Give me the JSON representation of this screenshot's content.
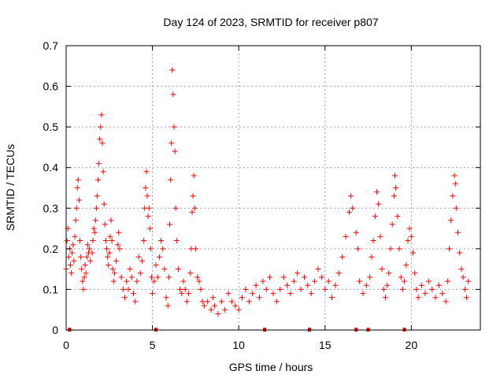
{
  "chart_data": {
    "type": "scatter",
    "title": "Day 124 of 2023, SRMTID for receiver p807",
    "xlabel": "GPS time / hours",
    "ylabel": "SRMTID / TECUs",
    "xlim": [
      0,
      24
    ],
    "ylim": [
      0,
      0.7
    ],
    "x_ticks": [
      0,
      5,
      10,
      15,
      20
    ],
    "y_ticks": [
      0,
      0.1,
      0.2,
      0.3,
      0.4,
      0.5,
      0.6,
      0.7
    ],
    "x_tick_labels": [
      "0",
      "5",
      "10",
      "15",
      "20"
    ],
    "y_tick_labels": [
      "0",
      "0.1",
      "0.2",
      "0.3",
      "0.4",
      "0.5",
      "0.6",
      "0.7"
    ],
    "grid": true,
    "marker": "+",
    "color": "#ff0000",
    "series": [
      {
        "name": "SRMTID",
        "points": [
          [
            0.0,
            0.15
          ],
          [
            0.05,
            0.22
          ],
          [
            0.1,
            0.25
          ],
          [
            0.15,
            0.18
          ],
          [
            0.2,
            0.2
          ],
          [
            0.25,
            0.16
          ],
          [
            0.3,
            0.14
          ],
          [
            0.35,
            0.19
          ],
          [
            0.4,
            0.21
          ],
          [
            0.45,
            0.17
          ],
          [
            0.5,
            0.23
          ],
          [
            0.55,
            0.27
          ],
          [
            0.6,
            0.3
          ],
          [
            0.65,
            0.35
          ],
          [
            0.7,
            0.37
          ],
          [
            0.75,
            0.32
          ],
          [
            0.8,
            0.22
          ],
          [
            0.85,
            0.18
          ],
          [
            0.9,
            0.15
          ],
          [
            0.95,
            0.12
          ],
          [
            1.0,
            0.1
          ],
          [
            1.05,
            0.13
          ],
          [
            1.1,
            0.16
          ],
          [
            1.15,
            0.14
          ],
          [
            1.2,
            0.18
          ],
          [
            1.25,
            0.21
          ],
          [
            1.3,
            0.19
          ],
          [
            1.35,
            0.2
          ],
          [
            1.4,
            0.17
          ],
          [
            1.5,
            0.19
          ],
          [
            1.55,
            0.22
          ],
          [
            1.6,
            0.25
          ],
          [
            1.65,
            0.24
          ],
          [
            1.7,
            0.27
          ],
          [
            1.75,
            0.3
          ],
          [
            1.8,
            0.33
          ],
          [
            1.85,
            0.37
          ],
          [
            1.9,
            0.41
          ],
          [
            1.95,
            0.47
          ],
          [
            2.0,
            0.5
          ],
          [
            2.05,
            0.53
          ],
          [
            2.1,
            0.46
          ],
          [
            2.15,
            0.39
          ],
          [
            2.2,
            0.31
          ],
          [
            2.25,
            0.26
          ],
          [
            2.3,
            0.22
          ],
          [
            2.35,
            0.2
          ],
          [
            2.4,
            0.18
          ],
          [
            2.45,
            0.16
          ],
          [
            2.5,
            0.19
          ],
          [
            2.55,
            0.23
          ],
          [
            2.6,
            0.27
          ],
          [
            2.65,
            0.22
          ],
          [
            2.7,
            0.15
          ],
          [
            2.75,
            0.12
          ],
          [
            2.8,
            0.14
          ],
          [
            2.9,
            0.17
          ],
          [
            3.0,
            0.21
          ],
          [
            3.05,
            0.24
          ],
          [
            3.1,
            0.2
          ],
          [
            3.2,
            0.13
          ],
          [
            3.3,
            0.1
          ],
          [
            3.4,
            0.08
          ],
          [
            3.5,
            0.12
          ],
          [
            3.6,
            0.1
          ],
          [
            3.7,
            0.15
          ],
          [
            3.8,
            0.13
          ],
          [
            3.9,
            0.09
          ],
          [
            4.0,
            0.07
          ],
          [
            4.1,
            0.12
          ],
          [
            4.2,
            0.18
          ],
          [
            4.3,
            0.14
          ],
          [
            4.4,
            0.17
          ],
          [
            4.5,
            0.22
          ],
          [
            4.55,
            0.3
          ],
          [
            4.6,
            0.35
          ],
          [
            4.65,
            0.39
          ],
          [
            4.7,
            0.33
          ],
          [
            4.75,
            0.28
          ],
          [
            4.8,
            0.3
          ],
          [
            4.85,
            0.25
          ],
          [
            4.9,
            0.2
          ],
          [
            4.95,
            0.13
          ],
          [
            5.0,
            0.09
          ],
          [
            5.1,
            0.12
          ],
          [
            5.2,
            0.16
          ],
          [
            5.3,
            0.13
          ],
          [
            5.4,
            0.18
          ],
          [
            5.5,
            0.22
          ],
          [
            5.6,
            0.2
          ],
          [
            5.7,
            0.15
          ],
          [
            5.8,
            0.08
          ],
          [
            5.9,
            0.06
          ],
          [
            5.95,
            0.13
          ],
          [
            6.0,
            0.26
          ],
          [
            6.05,
            0.37
          ],
          [
            6.1,
            0.46
          ],
          [
            6.15,
            0.64
          ],
          [
            6.2,
            0.58
          ],
          [
            6.25,
            0.5
          ],
          [
            6.3,
            0.44
          ],
          [
            6.35,
            0.3
          ],
          [
            6.4,
            0.22
          ],
          [
            6.5,
            0.15
          ],
          [
            6.6,
            0.1
          ],
          [
            6.7,
            0.09
          ],
          [
            6.8,
            0.12
          ],
          [
            6.9,
            0.1
          ],
          [
            7.0,
            0.07
          ],
          [
            7.1,
            0.09
          ],
          [
            7.2,
            0.14
          ],
          [
            7.25,
            0.2
          ],
          [
            7.3,
            0.29
          ],
          [
            7.35,
            0.33
          ],
          [
            7.4,
            0.38
          ],
          [
            7.45,
            0.3
          ],
          [
            7.5,
            0.2
          ],
          [
            7.6,
            0.13
          ],
          [
            7.7,
            0.12
          ],
          [
            7.8,
            0.1
          ],
          [
            7.9,
            0.07
          ],
          [
            8.0,
            0.06
          ],
          [
            8.2,
            0.07
          ],
          [
            8.4,
            0.05
          ],
          [
            8.5,
            0.08
          ],
          [
            8.6,
            0.06
          ],
          [
            8.8,
            0.04
          ],
          [
            9.0,
            0.07
          ],
          [
            9.2,
            0.05
          ],
          [
            9.4,
            0.09
          ],
          [
            9.6,
            0.07
          ],
          [
            9.8,
            0.06
          ],
          [
            10.0,
            0.05
          ],
          [
            10.2,
            0.08
          ],
          [
            10.4,
            0.1
          ],
          [
            10.6,
            0.07
          ],
          [
            10.8,
            0.09
          ],
          [
            11.0,
            0.11
          ],
          [
            11.2,
            0.08
          ],
          [
            11.4,
            0.12
          ],
          [
            11.6,
            0.1
          ],
          [
            11.8,
            0.13
          ],
          [
            12.0,
            0.09
          ],
          [
            12.2,
            0.07
          ],
          [
            12.4,
            0.1
          ],
          [
            12.6,
            0.13
          ],
          [
            12.8,
            0.11
          ],
          [
            13.0,
            0.09
          ],
          [
            13.2,
            0.12
          ],
          [
            13.4,
            0.14
          ],
          [
            13.6,
            0.1
          ],
          [
            13.8,
            0.13
          ],
          [
            14.0,
            0.11
          ],
          [
            14.2,
            0.09
          ],
          [
            14.4,
            0.12
          ],
          [
            14.6,
            0.15
          ],
          [
            14.8,
            0.13
          ],
          [
            15.0,
            0.1
          ],
          [
            15.2,
            0.12
          ],
          [
            15.4,
            0.08
          ],
          [
            15.6,
            0.11
          ],
          [
            15.8,
            0.14
          ],
          [
            16.0,
            0.18
          ],
          [
            16.2,
            0.23
          ],
          [
            16.4,
            0.29
          ],
          [
            16.5,
            0.33
          ],
          [
            16.6,
            0.3
          ],
          [
            16.8,
            0.24
          ],
          [
            16.9,
            0.2
          ],
          [
            17.0,
            0.12
          ],
          [
            17.2,
            0.09
          ],
          [
            17.4,
            0.11
          ],
          [
            17.6,
            0.13
          ],
          [
            17.7,
            0.18
          ],
          [
            17.8,
            0.22
          ],
          [
            17.9,
            0.28
          ],
          [
            18.0,
            0.34
          ],
          [
            18.1,
            0.31
          ],
          [
            18.2,
            0.23
          ],
          [
            18.3,
            0.15
          ],
          [
            18.4,
            0.1
          ],
          [
            18.5,
            0.08
          ],
          [
            18.6,
            0.11
          ],
          [
            18.7,
            0.14
          ],
          [
            18.8,
            0.2
          ],
          [
            18.9,
            0.26
          ],
          [
            19.0,
            0.33
          ],
          [
            19.05,
            0.38
          ],
          [
            19.1,
            0.35
          ],
          [
            19.2,
            0.28
          ],
          [
            19.3,
            0.2
          ],
          [
            19.4,
            0.13
          ],
          [
            19.5,
            0.1
          ],
          [
            19.6,
            0.12
          ],
          [
            19.7,
            0.16
          ],
          [
            19.8,
            0.22
          ],
          [
            19.9,
            0.25
          ],
          [
            20.0,
            0.23
          ],
          [
            20.1,
            0.19
          ],
          [
            20.2,
            0.14
          ],
          [
            20.3,
            0.1
          ],
          [
            20.4,
            0.08
          ],
          [
            20.6,
            0.11
          ],
          [
            20.8,
            0.09
          ],
          [
            21.0,
            0.12
          ],
          [
            21.2,
            0.1
          ],
          [
            21.4,
            0.08
          ],
          [
            21.6,
            0.11
          ],
          [
            21.8,
            0.09
          ],
          [
            22.0,
            0.07
          ],
          [
            22.1,
            0.12
          ],
          [
            22.2,
            0.2
          ],
          [
            22.3,
            0.27
          ],
          [
            22.4,
            0.33
          ],
          [
            22.5,
            0.38
          ],
          [
            22.55,
            0.36
          ],
          [
            22.6,
            0.3
          ],
          [
            22.7,
            0.24
          ],
          [
            22.8,
            0.19
          ],
          [
            22.9,
            0.15
          ],
          [
            23.0,
            0.13
          ],
          [
            23.1,
            0.1
          ],
          [
            23.2,
            0.08
          ],
          [
            23.3,
            0.12
          ]
        ]
      }
    ],
    "axis_markers": [
      0.2,
      5.2,
      11.5,
      14.1,
      16.8,
      17.5,
      19.6
    ]
  }
}
